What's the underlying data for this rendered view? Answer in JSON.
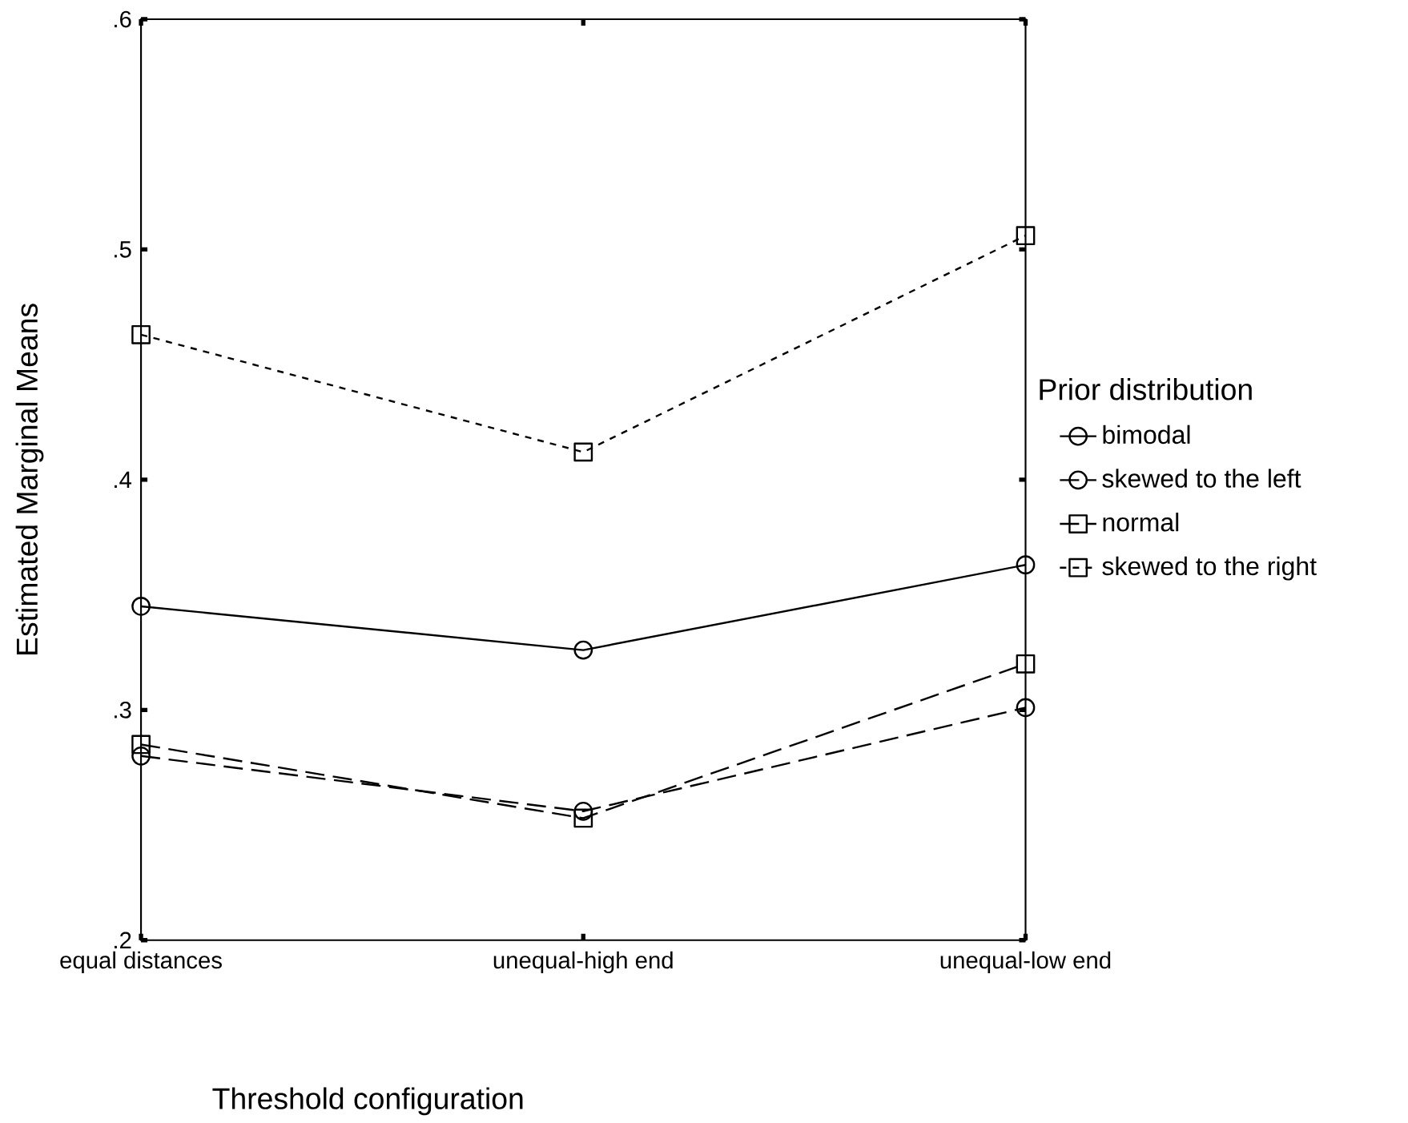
{
  "chart_data": {
    "type": "line",
    "xlabel": "Threshold configuration",
    "ylabel": "Estimated Marginal Means",
    "legend_title": "Prior distribution",
    "categories": [
      "equal distances",
      "unequal-high end",
      "unequal-low end"
    ],
    "ylim": [
      0.2,
      0.6
    ],
    "yticks": [
      {
        "value": 0.2,
        "label": ".2"
      },
      {
        "value": 0.3,
        "label": ".3"
      },
      {
        "value": 0.4,
        "label": ".4"
      },
      {
        "value": 0.5,
        "label": ".5"
      },
      {
        "value": 0.6,
        "label": ".6"
      }
    ],
    "grid": false,
    "legend": "right",
    "series": [
      {
        "name": "bimodal",
        "color": "#000000",
        "values": [
          0.345,
          0.326,
          0.363
        ],
        "marker": "circle",
        "line_style": "solid"
      },
      {
        "name": "skewed to the left",
        "color": "#000000",
        "values": [
          0.28,
          0.256,
          0.301
        ],
        "marker": "circle",
        "line_style": "dashed"
      },
      {
        "name": "normal",
        "color": "#000000",
        "values": [
          0.285,
          0.253,
          0.32
        ],
        "marker": "square",
        "line_style": "dashed"
      },
      {
        "name": "skewed to the right",
        "color": "#000000",
        "values": [
          0.463,
          0.412,
          0.506
        ],
        "marker": "square",
        "line_style": "dotted"
      }
    ]
  }
}
